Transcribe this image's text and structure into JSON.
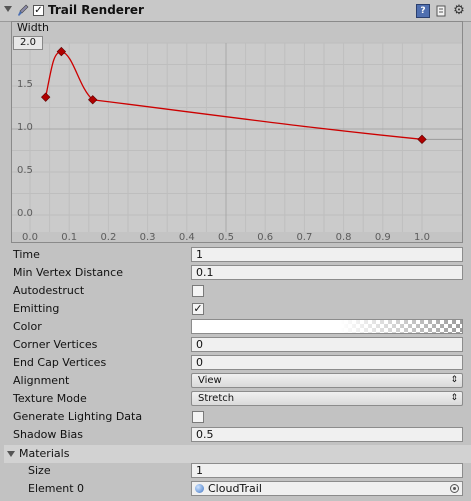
{
  "header": {
    "title": "Trail Renderer",
    "enabled": "✓",
    "help_glyph": "?",
    "gear_glyph": "⚙"
  },
  "curve": {
    "label": "Width",
    "max_value": "2.0",
    "curve_color": "#cc0000",
    "y_ticks": [
      "1.5",
      "1.0",
      "0.5",
      "0.0"
    ],
    "x_ticks": [
      "0.0",
      "0.1",
      "0.2",
      "0.3",
      "0.4",
      "0.5",
      "0.6",
      "0.7",
      "0.8",
      "0.9",
      "1.0"
    ]
  },
  "chart_data": {
    "type": "line",
    "title": "",
    "xlabel": "",
    "ylabel": "Width",
    "xlim": [
      0,
      1.05
    ],
    "ylim": [
      0,
      2.0
    ],
    "grid": true,
    "series": [
      {
        "values": [
          {
            "x": 0.04,
            "y": 1.37
          },
          {
            "x": 0.08,
            "y": 1.9
          },
          {
            "x": 0.16,
            "y": 1.34
          },
          {
            "x": 1.0,
            "y": 0.88
          }
        ]
      }
    ]
  },
  "properties": {
    "time": {
      "label": "Time",
      "value": "1"
    },
    "min_vertex_distance": {
      "label": "Min Vertex Distance",
      "value": "0.1"
    },
    "autodestruct": {
      "label": "Autodestruct",
      "value": ""
    },
    "emitting": {
      "label": "Emitting",
      "value": "✓"
    },
    "color": {
      "label": "Color"
    },
    "corner_vertices": {
      "label": "Corner Vertices",
      "value": "0"
    },
    "end_cap_vertices": {
      "label": "End Cap Vertices",
      "value": "0"
    },
    "alignment": {
      "label": "Alignment",
      "value": "View",
      "arrow": "⇕"
    },
    "texture_mode": {
      "label": "Texture Mode",
      "value": "Stretch",
      "arrow": "⇕"
    },
    "generate_lighting_data": {
      "label": "Generate Lighting Data",
      "value": ""
    },
    "shadow_bias": {
      "label": "Shadow Bias",
      "value": "0.5"
    }
  },
  "materials": {
    "label": "Materials",
    "size": {
      "label": "Size",
      "value": "1"
    },
    "element0": {
      "label": "Element 0",
      "value": "CloudTrail"
    }
  }
}
